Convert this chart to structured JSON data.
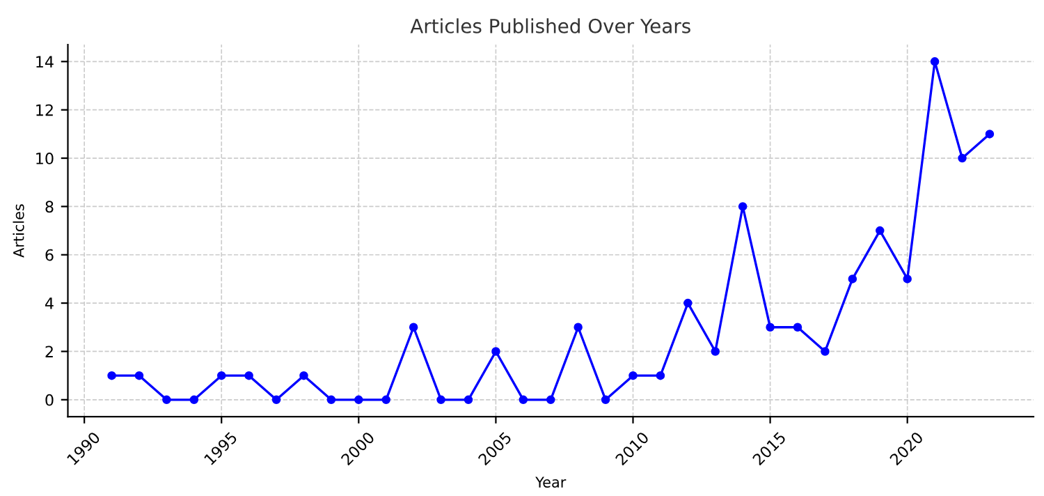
{
  "chart_data": {
    "type": "line",
    "title": "Articles Published Over Years",
    "xlabel": "Year",
    "ylabel": "Articles",
    "x": [
      1991,
      1992,
      1993,
      1994,
      1995,
      1996,
      1997,
      1998,
      1999,
      2000,
      2001,
      2002,
      2003,
      2004,
      2005,
      2006,
      2007,
      2008,
      2009,
      2010,
      2011,
      2012,
      2013,
      2014,
      2015,
      2016,
      2017,
      2018,
      2019,
      2020,
      2021,
      2022,
      2023
    ],
    "series": [
      {
        "color": "#0000ff",
        "values": [
          1,
          1,
          0,
          0,
          1,
          1,
          0,
          1,
          0,
          0,
          0,
          3,
          0,
          0,
          2,
          0,
          0,
          3,
          0,
          1,
          1,
          4,
          2,
          8,
          3,
          3,
          2,
          5,
          7,
          5,
          14,
          10,
          11
        ]
      }
    ],
    "xlim": [
      1989.4,
      2024.6
    ],
    "xticks": [
      1990,
      1995,
      2000,
      2005,
      2010,
      2015,
      2020
    ],
    "ylim": [
      -0.7,
      14.7
    ],
    "yticks": [
      0,
      2,
      4,
      6,
      8,
      10,
      12,
      14
    ],
    "grid": true,
    "marker": "circle",
    "line_style": "solid",
    "legend": false
  }
}
